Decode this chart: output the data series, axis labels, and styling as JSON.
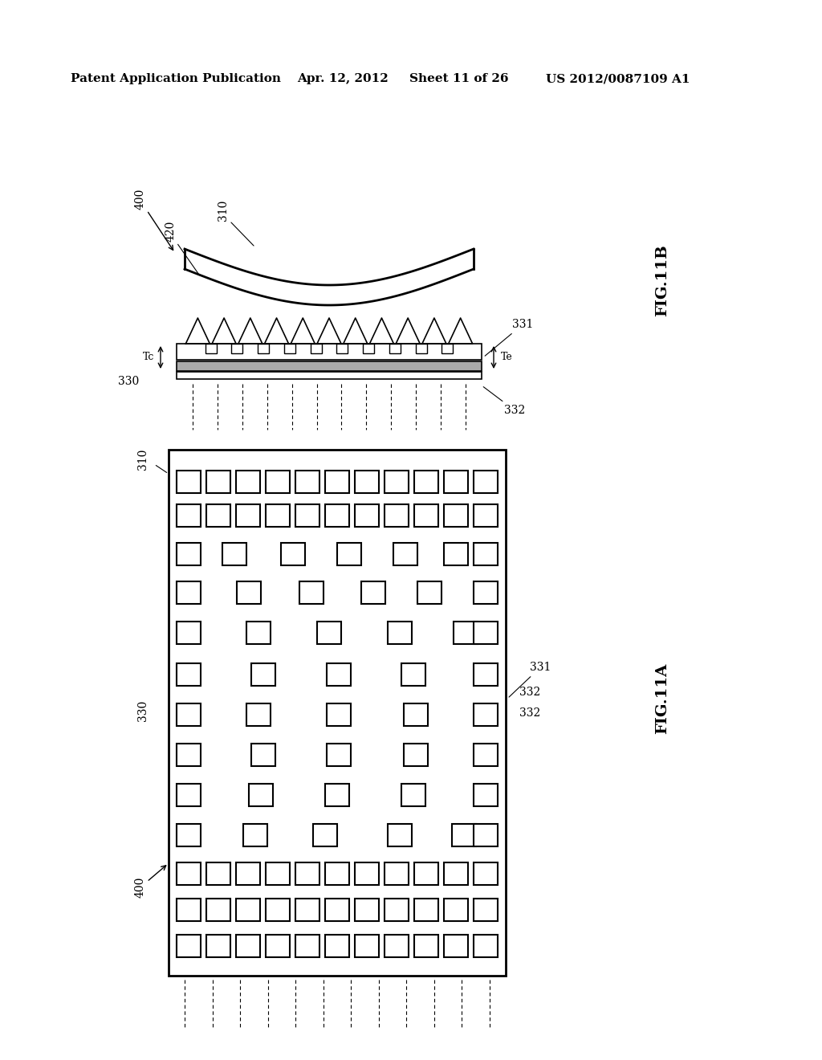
{
  "bg_color": "#ffffff",
  "header_text": "Patent Application Publication",
  "header_date": "Apr. 12, 2012",
  "header_sheet": "Sheet 11 of 26",
  "header_patent": "US 2012/0087109 A1",
  "fig11b_label": "FIG.11B",
  "fig11a_label": "FIG.11A",
  "label_400_top": "400",
  "label_420": "420",
  "label_310_top": "310",
  "label_330_top": "330",
  "label_310_side": "310",
  "label_330_side": "330",
  "label_331_top": "331",
  "label_332_top": "332",
  "label_Tc": "Tc",
  "label_Te": "Te",
  "label_331_side": "331",
  "label_332_side": "332",
  "label_400_bottom": "400"
}
